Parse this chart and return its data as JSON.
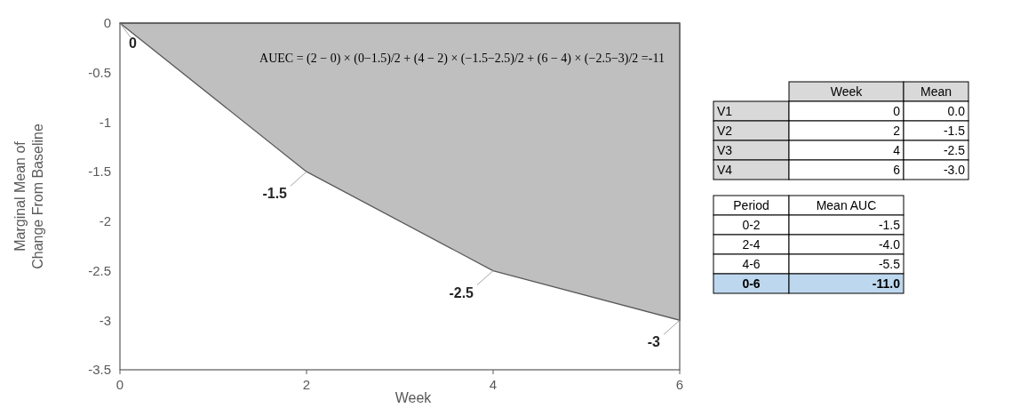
{
  "chart_data": [
    {
      "type": "area",
      "xlabel": "Week",
      "ylabel": "Marginal Mean of Change From Baseline",
      "x": [
        0,
        2,
        4,
        6
      ],
      "series": [
        {
          "color": "#bfbfbf",
          "values": [
            0,
            -1.5,
            -2.5,
            -3
          ]
        }
      ],
      "xlim": [
        0,
        6
      ],
      "xticks": [
        0,
        2,
        4,
        6
      ],
      "ylim": [
        -3.5,
        0
      ],
      "yticks": [
        -3.5,
        -3,
        -2.5,
        -2,
        -1.5,
        -1,
        -0.5,
        0
      ],
      "grid": false,
      "data_labels": true,
      "annotations": [
        "AUEC = (2 − 0) × (0−1.5)/2 + (4 − 2) × (−1.5−2.5)/2 + (6 − 4) × (−2.5−3)/2 =-11"
      ]
    },
    {
      "type": "other",
      "categories": [
        "V1",
        "V2",
        "V3",
        "V4"
      ],
      "series": [
        {
          "name": "Week",
          "values": [
            0,
            2,
            4,
            6
          ],
          "value_labels": [
            "0",
            "2",
            "4",
            "6"
          ]
        },
        {
          "name": "Mean",
          "values": [
            0,
            -1.5,
            -2.5,
            -3.0
          ],
          "value_labels": [
            "0.0",
            "-1.5",
            "-2.5",
            "-3.0"
          ]
        }
      ]
    },
    {
      "type": "other",
      "xlabel": "Period",
      "categories": [
        "0-2",
        "2-4",
        "4-6",
        "0-6"
      ],
      "colors": [
        "#ffffff",
        "#ffffff",
        "#ffffff",
        "#bdd7ee"
      ],
      "series": [
        {
          "name": "Mean AUC",
          "values": [
            -1.5,
            -4.0,
            -5.5,
            -11.0
          ],
          "value_labels": [
            "-1.5",
            "-4.0",
            "-5.5",
            "-11.0"
          ]
        }
      ]
    }
  ]
}
